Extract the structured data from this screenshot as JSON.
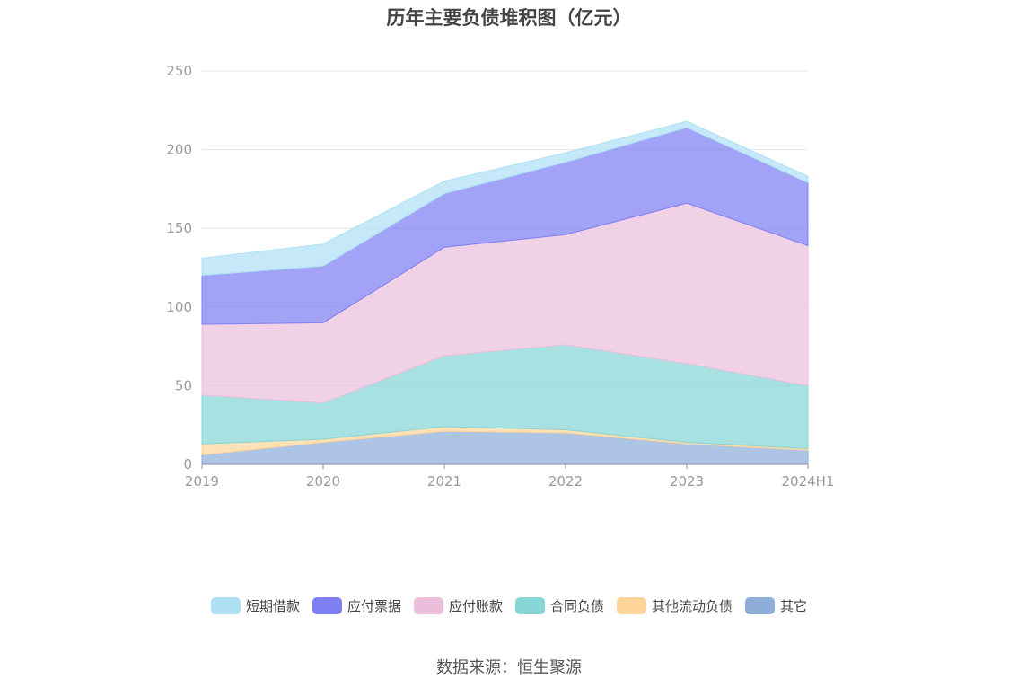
{
  "chart_data": {
    "type": "area",
    "title": "历年主要负债堆积图（亿元）",
    "categories": [
      "2019",
      "2020",
      "2021",
      "2022",
      "2023",
      "2024H1"
    ],
    "ylim": [
      0,
      250
    ],
    "yticks": [
      "0",
      "50",
      "100",
      "150",
      "200",
      "250"
    ],
    "grid": true,
    "legend_position": "bottom",
    "stacked": true,
    "series": [
      {
        "name": "其它",
        "color": "#8eadd9",
        "values": [
          6,
          14,
          21,
          20,
          13,
          9
        ]
      },
      {
        "name": "其他流动负债",
        "color": "#fdd59a",
        "values": [
          7,
          2,
          3,
          2,
          1,
          1
        ]
      },
      {
        "name": "合同负债",
        "color": "#86d6d6",
        "values": [
          31,
          23,
          45,
          54,
          50,
          40
        ]
      },
      {
        "name": "应付账款",
        "color": "#ebbfdc",
        "values": [
          45,
          51,
          69,
          70,
          102,
          89
        ]
      },
      {
        "name": "应付票据",
        "color": "#7e80f3",
        "values": [
          31,
          36,
          34,
          46,
          48,
          40
        ]
      },
      {
        "name": "短期借款",
        "color": "#aee0f5",
        "values": [
          11,
          14,
          8,
          6,
          4,
          4
        ]
      }
    ],
    "legend_order": [
      "短期借款",
      "应付票据",
      "应付账款",
      "合同负债",
      "其他流动负债",
      "其它"
    ]
  },
  "source": "数据来源：恒生聚源"
}
